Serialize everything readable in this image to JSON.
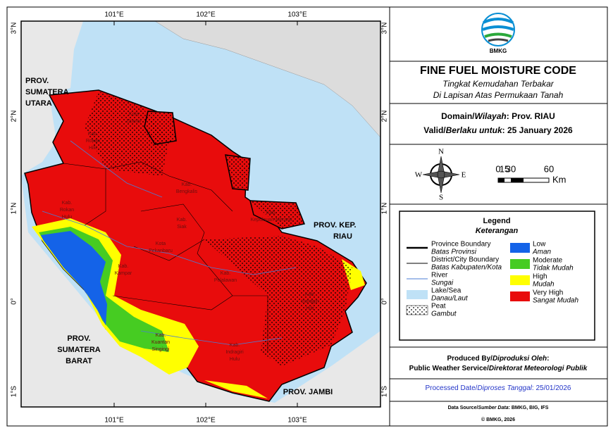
{
  "map": {
    "lon_labels": [
      "101°E",
      "102°E",
      "103°E"
    ],
    "lat_labels": [
      "3°N",
      "2°N",
      "1°N",
      "0°",
      "1°S"
    ],
    "province_labels": [
      {
        "lines": [
          "PROV.",
          "SUMATERA",
          "UTARA"
        ]
      },
      {
        "lines": [
          "PROV.",
          "SUMATERA",
          "BARAT"
        ]
      },
      {
        "lines": [
          "PROV. JAMBI"
        ]
      },
      {
        "lines": [
          "PROV. KEP.",
          "RIAU"
        ]
      }
    ],
    "region_labels": [
      {
        "lines": [
          "Kab.",
          "Rokan",
          "Hilir"
        ]
      },
      {
        "lines": [
          "Kota",
          "Dumai"
        ]
      },
      {
        "lines": [
          "Kab.",
          "Bengkalis"
        ]
      },
      {
        "lines": [
          "Kab.",
          "Rokan",
          "Hulu"
        ]
      },
      {
        "lines": [
          "Kab.",
          "Siak"
        ]
      },
      {
        "lines": [
          "Kota",
          "Pekanbaru"
        ]
      },
      {
        "lines": [
          "Kab.",
          "Kampar"
        ]
      },
      {
        "lines": [
          "Kab.",
          "Pelalawan"
        ]
      },
      {
        "lines": [
          "Kab.",
          "Indragiri",
          "Hilir"
        ]
      },
      {
        "lines": [
          "Kab.",
          "Kuantan",
          "Singingi"
        ]
      },
      {
        "lines": [
          "Kab.",
          "Indragiri",
          "Hulu"
        ]
      },
      {
        "lines": [
          "Kab.",
          "Kepulauan Meranti"
        ]
      }
    ]
  },
  "panel": {
    "logo_text": "BMKG",
    "title": "FINE FUEL MOISTURE CODE",
    "subtitle_lines": [
      "Tingkat Kemudahan Terbakar",
      "Di Lapisan Atas Permukaan Tanah"
    ],
    "domain": [
      {
        "text": "Domain/"
      },
      {
        "text": "Wilayah",
        "italic": true
      },
      {
        "text": ": Prov. RIAU"
      }
    ],
    "valid": [
      {
        "text": "Valid/"
      },
      {
        "text": "Berlaku untuk",
        "italic": true
      },
      {
        "text": ": 25 January 2026"
      }
    ],
    "compass": {
      "n": "N",
      "e": "E",
      "s": "S",
      "w": "W"
    },
    "scale": {
      "labels": [
        "0",
        "15",
        "30",
        "60"
      ],
      "unit": "Km"
    },
    "legend": {
      "title": "Legend",
      "subtitle": "Keterangan",
      "lines": [
        {
          "label": "Province Boundary",
          "label_id": "Batas Provinsi",
          "kind": "province"
        },
        {
          "label": "District/City Boundary",
          "label_id": "Batas Kabupaten/Kota",
          "kind": "district"
        },
        {
          "label": "River",
          "label_id": "Sungai",
          "kind": "river"
        },
        {
          "label": "Lake/Sea",
          "label_id": "Danau/Laut",
          "kind": "lake"
        },
        {
          "label": "Peat",
          "label_id": "Gambut",
          "kind": "peat"
        }
      ],
      "classes": [
        {
          "label": "Low",
          "label_id": "Aman",
          "color": "#1463e8"
        },
        {
          "label": "Moderate",
          "label_id": "Tidak Mudah",
          "color": "#46cc22"
        },
        {
          "label": "High",
          "label_id": "Mudah",
          "color": "#ffff00"
        },
        {
          "label": "Very High",
          "label_id": "Sangat Mudah",
          "color": "#e80c0c"
        }
      ]
    },
    "produced": [
      {
        "text": "Produced By/"
      },
      {
        "text": "Diproduksi Oleh",
        "italic": true
      },
      {
        "text": ":"
      }
    ],
    "producer": [
      {
        "text": "Public Weather Service/"
      },
      {
        "text": "Direktorat Meteorologi Publik",
        "italic": true
      }
    ],
    "processed": [
      {
        "text": "Processed Date/"
      },
      {
        "text": "Diproses Tanggal",
        "italic": true
      },
      {
        "text": ": 25/01/2026"
      }
    ],
    "source": [
      {
        "text": "Data Source/"
      },
      {
        "text": "Sumber Data",
        "italic": true
      },
      {
        "text": ": BMKG, BIG, IFS"
      }
    ],
    "copyright": "© BMKG, 2026"
  }
}
